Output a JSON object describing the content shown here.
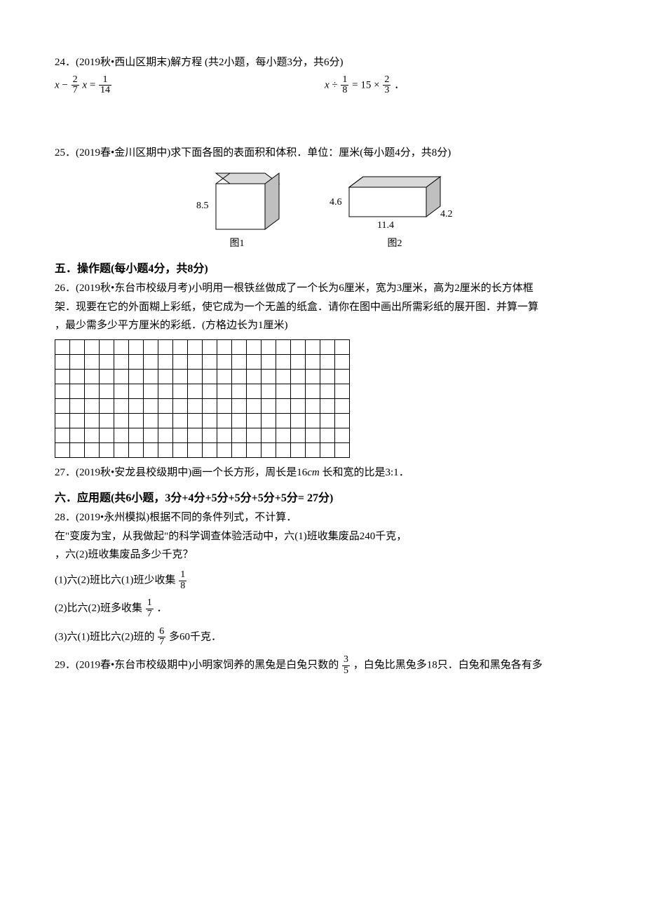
{
  "q24": {
    "label": "24．(2019秋•西山区期末)解方程 (共2小题，每小题3分，共6分)",
    "eq1": {
      "var": "x",
      "minus": "−",
      "f1n": "2",
      "f1d": "7",
      "x2": "x",
      "eq": "=",
      "f2n": "1",
      "f2d": "14"
    },
    "eq2": {
      "var": "x",
      "div": "÷",
      "f1n": "1",
      "f1d": "8",
      "eq": "=",
      "num15": "15",
      "times": "×",
      "f2n": "2",
      "f2d": "3",
      "dot": "．"
    }
  },
  "q25": {
    "label": "25．(2019春•金川区期中)求下面各图的表面积和体积．单位：厘米(每小题4分，共8分)",
    "fig1": {
      "side": "8.5",
      "cap": "图1"
    },
    "fig2": {
      "h": "4.6",
      "l": "11.4",
      "w": "4.2",
      "cap": "图2"
    }
  },
  "sec5": "五．操作题(每小题4分，共8分)",
  "q26": {
    "line1": "26．(2019秋•东台市校级月考)小明用一根铁丝做成了一个长为6厘米，宽为3厘米，高为2厘米的长方体框",
    "line2": "架．现要在它的外面糊上彩纸，使它成为一个无盖的纸盒．请你在图中画出所需彩纸的展开图．并算一算",
    "line3": "，最少需多少平方厘米的彩纸．(方格边长为1厘米)"
  },
  "grid": {
    "rows": 8,
    "cols": 20
  },
  "q27": {
    "pre": "27．(2019秋•安龙县校级期中)画一个长方形，周长是16",
    "cm": "cm",
    "mid": " 长和宽的比是",
    "ratio": "3:1",
    "end": "．"
  },
  "sec6": "六．应用题(共6小题，3分+4分+5分+5分+5分+5分= 27分)",
  "q28": {
    "l1": "28．(2019•永州模拟)根据不同的条件列式，不计算．",
    "l2": "在\"变废为宝，从我做起\"的科学调查体验活动中，六(1)班收集废品240千克，",
    "l3": "，六(2)班收集废品多少千克？",
    "p1a": "(1)六(2)班比六(1)班少收集",
    "p1n": "1",
    "p1d": "8",
    "p2a": "(2)比六(2)班多收集",
    "p2n": "1",
    "p2d": "7",
    "p2e": "．",
    "p3a": "(3)六(1)班比六(2)班的",
    "p3n": "6",
    "p3d": "7",
    "p3e": " 多60千克．"
  },
  "q29": {
    "a": "29．(2019春•东台市校级期中)小明家饲养的黑兔是白兔只数的",
    "n": "3",
    "d": "5",
    "b": "，白兔比黑兔多18只．白兔和黑兔各有多"
  }
}
